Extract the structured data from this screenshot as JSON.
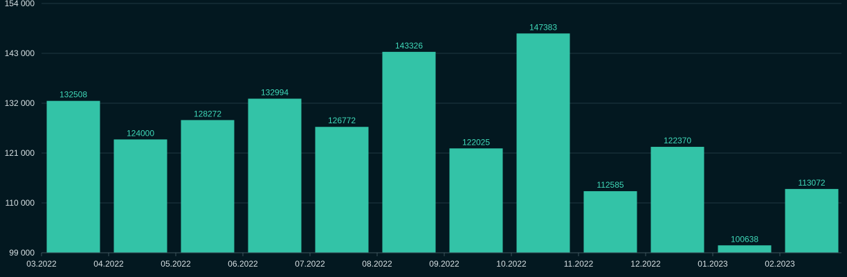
{
  "chart_data": {
    "type": "bar",
    "categories": [
      "03.2022",
      "04.2022",
      "05.2022",
      "06.2022",
      "07.2022",
      "08.2022",
      "09.2022",
      "10.2022",
      "11.2022",
      "12.2022",
      "01.2023",
      "02.2023"
    ],
    "values": [
      132508,
      124000,
      128272,
      132994,
      126772,
      143326,
      122025,
      147383,
      112585,
      122370,
      100638,
      113072
    ],
    "data_labels": [
      "132508",
      "124000",
      "128272",
      "132994",
      "126772",
      "143326",
      "122025",
      "147383",
      "112585",
      "122370",
      "100638",
      "113072"
    ],
    "ylim": [
      99000,
      154000
    ],
    "y_ticks": [
      99000,
      110000,
      121000,
      132000,
      143000,
      154000
    ],
    "y_tick_labels": [
      "99 000",
      "110 000",
      "121 000",
      "132 000",
      "143 000",
      "154 000"
    ],
    "grid": true,
    "colors": {
      "background": "#031820",
      "bar": "#33c3a7",
      "data_label": "#3fd8b8",
      "grid": "#1f3942",
      "tick_text": "#d6dfe2"
    }
  }
}
